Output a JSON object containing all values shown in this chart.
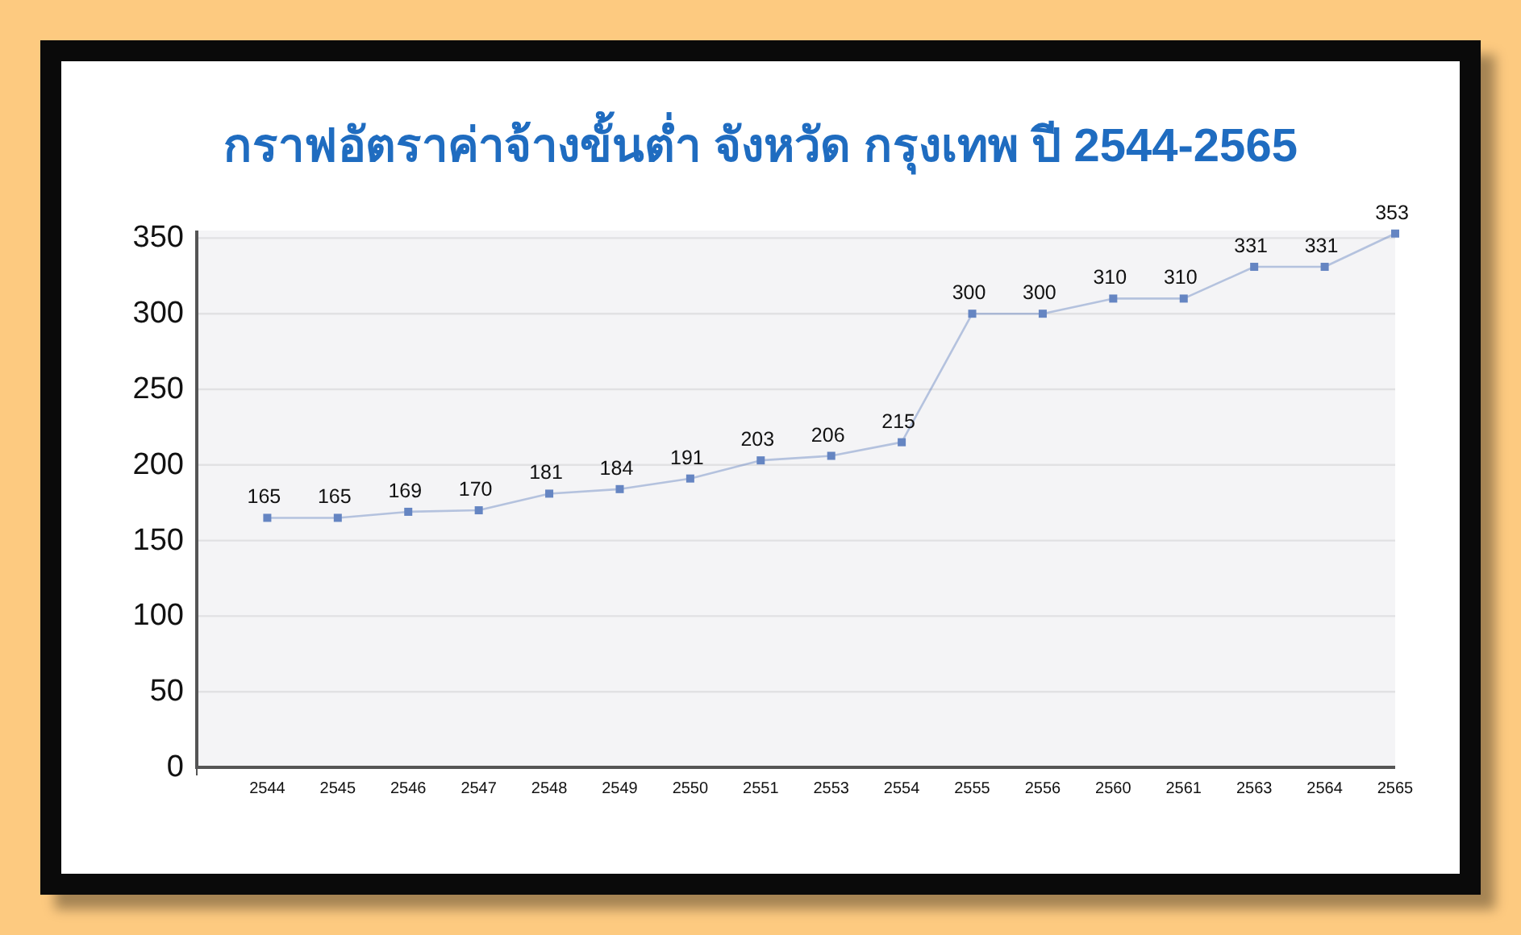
{
  "chart_data": {
    "type": "line",
    "title": "กราฟอัตราค่าจ้างขั้นต่ำ จังหวัด กรุงเทพ ปี 2544-2565",
    "categories": [
      "2544",
      "2545",
      "2546",
      "2547",
      "2548",
      "2549",
      "2550",
      "2551",
      "2553",
      "2554",
      "2555",
      "2556",
      "2560",
      "2561",
      "2563",
      "2564",
      "2565"
    ],
    "values": [
      165,
      165,
      169,
      170,
      181,
      184,
      191,
      203,
      206,
      215,
      300,
      300,
      310,
      310,
      331,
      331,
      353
    ],
    "color": "#6585c2",
    "marker": "square",
    "data_labels": true,
    "grid": "y",
    "ylim": [
      0,
      355
    ],
    "yticks": [
      0,
      50,
      100,
      150,
      200,
      250,
      300,
      350
    ]
  }
}
